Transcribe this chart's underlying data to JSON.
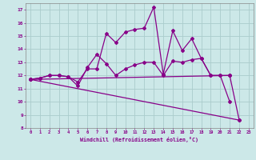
{
  "xlabel": "Windchill (Refroidissement éolien,°C)",
  "bg_color": "#cce8e8",
  "line_color": "#880088",
  "grid_color": "#aacccc",
  "xlim": [
    -0.5,
    23.5
  ],
  "ylim": [
    8,
    17.5
  ],
  "yticks": [
    8,
    9,
    10,
    11,
    12,
    13,
    14,
    15,
    16,
    17
  ],
  "xticks": [
    0,
    1,
    2,
    3,
    4,
    5,
    6,
    7,
    8,
    9,
    10,
    11,
    12,
    13,
    14,
    15,
    16,
    17,
    18,
    19,
    20,
    21,
    22,
    23
  ],
  "line1_x": [
    0,
    1,
    2,
    3,
    4,
    5,
    6,
    7,
    8,
    9,
    10,
    11,
    12,
    13,
    14,
    15,
    16,
    17,
    18,
    19,
    20,
    21,
    22
  ],
  "line1_y": [
    11.7,
    11.8,
    12.0,
    12.0,
    11.9,
    11.2,
    12.6,
    13.6,
    12.9,
    12.0,
    12.5,
    12.8,
    13.0,
    13.0,
    12.0,
    13.1,
    13.0,
    13.2,
    13.3,
    12.0,
    12.0,
    10.0,
    null
  ],
  "line2_x": [
    0,
    1,
    2,
    3,
    4,
    5,
    6,
    7,
    8,
    9,
    10,
    11,
    12,
    13,
    14,
    15,
    16,
    17,
    18,
    19,
    20,
    21,
    22
  ],
  "line2_y": [
    11.7,
    11.8,
    12.0,
    12.0,
    11.9,
    11.5,
    12.5,
    12.5,
    15.2,
    14.5,
    15.3,
    15.5,
    15.6,
    17.2,
    12.1,
    15.4,
    13.9,
    14.8,
    13.3,
    12.0,
    12.0,
    12.0,
    null
  ],
  "line3_x": [
    0,
    21
  ],
  "line3_y": [
    11.7,
    12.0
  ],
  "line4_x": [
    0,
    22
  ],
  "line4_y": [
    11.7,
    8.6
  ],
  "line5_x": [
    21,
    22
  ],
  "line5_y": [
    12.0,
    8.6
  ]
}
